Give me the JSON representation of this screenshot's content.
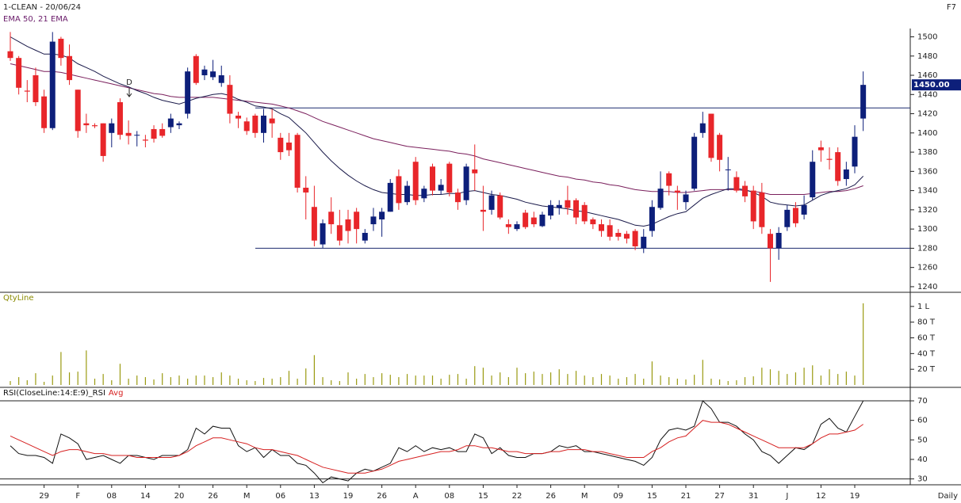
{
  "chart_data": [
    {
      "type": "candlestick",
      "title": "1-CLEAN - 20/06/24",
      "subtitle": "EMA 50, 21 EMA",
      "corner_label": "F7",
      "annotation": "D",
      "categories": [
        null,
        null,
        null,
        null,
        "29",
        null,
        null,
        null,
        "F",
        null,
        null,
        null,
        "08",
        null,
        null,
        null,
        "14",
        null,
        null,
        null,
        "20",
        null,
        null,
        null,
        "26",
        null,
        null,
        null,
        "M",
        null,
        null,
        null,
        "06",
        null,
        null,
        null,
        "13",
        null,
        null,
        null,
        "19",
        null,
        null,
        null,
        "26",
        null,
        null,
        null,
        "A",
        null,
        null,
        null,
        "08",
        null,
        null,
        null,
        "15",
        null,
        null,
        null,
        "22",
        null,
        null,
        null,
        "26",
        null,
        null,
        null,
        "M",
        null,
        null,
        null,
        "09",
        null,
        null,
        null,
        "15",
        null,
        null,
        null,
        "21",
        null,
        null,
        null,
        "27",
        null,
        null,
        null,
        "31",
        null,
        null,
        null,
        "J",
        null,
        null,
        null,
        "12",
        null,
        null,
        null,
        "19",
        null
      ],
      "open": [
        1485,
        1478,
        1444,
        1460,
        1438,
        1405,
        1498,
        1480,
        1445,
        1410,
        1408,
        1410,
        1400,
        1432,
        1400,
        1398,
        1393,
        1404,
        1404,
        1406,
        1408,
        1420,
        1480,
        1460,
        1458,
        1452,
        1450,
        1418,
        1412,
        1418,
        1400,
        1415,
        1395,
        1390,
        1398,
        1343,
        1323,
        1284,
        1318,
        1304,
        1310,
        1318,
        1288,
        1305,
        1310,
        1318,
        1355,
        1328,
        1370,
        1332,
        1365,
        1340,
        1368,
        1338,
        1330,
        1362,
        1320,
        1320,
        1335,
        1305,
        1300,
        1317,
        1312,
        1303,
        1314,
        1322,
        1330,
        1330,
        1325,
        1310,
        1305,
        1304,
        1296,
        1295,
        1298,
        1280,
        1298,
        1322,
        1358,
        1340,
        1328,
        1342,
        1400,
        1420,
        1398,
        1362,
        1354,
        1345,
        1340,
        1338,
        1295,
        1280,
        1302,
        1322,
        1315,
        1333,
        1385,
        1373,
        1380,
        1352,
        1365,
        1415
      ],
      "high": [
        1505,
        1480,
        1455,
        1468,
        1445,
        1505,
        1500,
        1492,
        1445,
        1420,
        1410,
        1410,
        1415,
        1436,
        1413,
        1402,
        1398,
        1408,
        1410,
        1420,
        1412,
        1468,
        1482,
        1470,
        1476,
        1470,
        1460,
        1422,
        1416,
        1420,
        1425,
        1425,
        1400,
        1400,
        1400,
        1355,
        1345,
        1310,
        1333,
        1320,
        1320,
        1322,
        1300,
        1322,
        1322,
        1352,
        1362,
        1350,
        1375,
        1345,
        1368,
        1352,
        1370,
        1342,
        1368,
        1388,
        1345,
        1340,
        1338,
        1310,
        1308,
        1320,
        1318,
        1318,
        1330,
        1330,
        1345,
        1332,
        1328,
        1312,
        1310,
        1310,
        1300,
        1298,
        1300,
        1300,
        1330,
        1360,
        1360,
        1345,
        1340,
        1400,
        1422,
        1420,
        1400,
        1375,
        1360,
        1350,
        1345,
        1348,
        1300,
        1302,
        1325,
        1328,
        1335,
        1382,
        1392,
        1385,
        1385,
        1370,
        1408,
        1464
      ],
      "low": [
        1475,
        1440,
        1432,
        1428,
        1400,
        1403,
        1470,
        1450,
        1395,
        1400,
        1405,
        1370,
        1385,
        1393,
        1388,
        1386,
        1385,
        1390,
        1395,
        1400,
        1404,
        1415,
        1450,
        1455,
        1455,
        1448,
        1410,
        1405,
        1398,
        1395,
        1390,
        1395,
        1372,
        1376,
        1338,
        1310,
        1282,
        1280,
        1295,
        1283,
        1285,
        1285,
        1285,
        1298,
        1292,
        1318,
        1320,
        1325,
        1325,
        1328,
        1335,
        1336,
        1334,
        1320,
        1325,
        1340,
        1298,
        1315,
        1310,
        1295,
        1298,
        1300,
        1302,
        1302,
        1310,
        1315,
        1315,
        1305,
        1305,
        1300,
        1292,
        1288,
        1288,
        1285,
        1278,
        1275,
        1292,
        1320,
        1335,
        1320,
        1320,
        1340,
        1395,
        1370,
        1360,
        1340,
        1338,
        1328,
        1300,
        1295,
        1245,
        1268,
        1298,
        1302,
        1310,
        1330,
        1370,
        1362,
        1345,
        1345,
        1358,
        1402
      ],
      "close": [
        1478,
        1447,
        1443,
        1432,
        1405,
        1495,
        1478,
        1455,
        1402,
        1408,
        1407,
        1376,
        1410,
        1398,
        1397,
        1398,
        1392,
        1394,
        1397,
        1415,
        1410,
        1464,
        1452,
        1466,
        1464,
        1460,
        1420,
        1415,
        1402,
        1400,
        1418,
        1410,
        1380,
        1382,
        1343,
        1338,
        1288,
        1306,
        1305,
        1288,
        1298,
        1300,
        1296,
        1313,
        1318,
        1348,
        1327,
        1345,
        1330,
        1342,
        1340,
        1346,
        1338,
        1328,
        1365,
        1358,
        1318,
        1335,
        1312,
        1302,
        1305,
        1302,
        1305,
        1315,
        1325,
        1325,
        1322,
        1312,
        1308,
        1305,
        1298,
        1292,
        1292,
        1290,
        1282,
        1292,
        1323,
        1342,
        1345,
        1338,
        1336,
        1396,
        1410,
        1374,
        1372,
        1362,
        1340,
        1334,
        1308,
        1302,
        1280,
        1296,
        1320,
        1306,
        1325,
        1370,
        1382,
        1372,
        1350,
        1362,
        1396,
        1450
      ],
      "up_color": "#0d1f7a",
      "down_color": "#e8262a",
      "series": [
        {
          "color": "#7a1f5c",
          "values": [
            1472,
            1470,
            1468,
            1466,
            1464,
            1464,
            1463,
            1461,
            1459,
            1457,
            1455,
            1453,
            1451,
            1449,
            1447,
            1445,
            1443,
            1441,
            1440,
            1438,
            1437,
            1437,
            1437,
            1437,
            1437,
            1436,
            1435,
            1434,
            1433,
            1432,
            1431,
            1430,
            1428,
            1426,
            1423,
            1420,
            1416,
            1412,
            1409,
            1406,
            1403,
            1400,
            1397,
            1394,
            1392,
            1390,
            1388,
            1386,
            1385,
            1384,
            1383,
            1382,
            1381,
            1379,
            1378,
            1376,
            1373,
            1371,
            1369,
            1367,
            1365,
            1363,
            1361,
            1359,
            1357,
            1355,
            1354,
            1352,
            1351,
            1349,
            1348,
            1346,
            1345,
            1343,
            1341,
            1340,
            1339,
            1339,
            1339,
            1338,
            1338,
            1339,
            1340,
            1341,
            1341,
            1341,
            1341,
            1340,
            1339,
            1338,
            1336,
            1336,
            1336,
            1336,
            1336,
            1337,
            1338,
            1339,
            1339,
            1340,
            1342,
            1345
          ]
        },
        {
          "color": "#1a1a4a",
          "values": [
            1500,
            1495,
            1490,
            1486,
            1482,
            1482,
            1481,
            1478,
            1472,
            1468,
            1464,
            1459,
            1455,
            1451,
            1448,
            1444,
            1441,
            1437,
            1434,
            1432,
            1430,
            1433,
            1436,
            1438,
            1440,
            1441,
            1439,
            1435,
            1432,
            1428,
            1427,
            1425,
            1420,
            1416,
            1408,
            1400,
            1390,
            1380,
            1371,
            1363,
            1356,
            1350,
            1345,
            1341,
            1338,
            1337,
            1336,
            1336,
            1335,
            1335,
            1336,
            1336,
            1337,
            1337,
            1339,
            1340,
            1338,
            1336,
            1335,
            1333,
            1331,
            1328,
            1326,
            1324,
            1323,
            1322,
            1321,
            1319,
            1318,
            1316,
            1314,
            1312,
            1310,
            1307,
            1304,
            1303,
            1305,
            1309,
            1313,
            1316,
            1318,
            1325,
            1332,
            1336,
            1339,
            1342,
            1342,
            1341,
            1338,
            1334,
            1328,
            1326,
            1325,
            1324,
            1325,
            1330,
            1335,
            1338,
            1340,
            1342,
            1346,
            1355
          ]
        }
      ],
      "levels": [
        1426,
        1280
      ],
      "level_color": "#1c2a6e",
      "last_price": {
        "value": 1450,
        "label": "1450.00"
      },
      "ylim": [
        1235,
        1507
      ],
      "yticks": [
        1240,
        1260,
        1280,
        1300,
        1320,
        1340,
        1360,
        1380,
        1400,
        1420,
        1440,
        1460,
        1480,
        1500
      ]
    },
    {
      "type": "bar",
      "title": "QtyLine",
      "color": "#9a9a10",
      "values": [
        5000,
        10000,
        6000,
        15000,
        4000,
        12000,
        42000,
        16000,
        17000,
        44000,
        8000,
        14000,
        6000,
        27000,
        8000,
        12000,
        10000,
        7000,
        15000,
        10000,
        12000,
        8000,
        12000,
        12000,
        10000,
        16000,
        12000,
        8000,
        6000,
        5000,
        9000,
        8000,
        10000,
        18000,
        8000,
        21000,
        38000,
        10000,
        6000,
        5000,
        16000,
        8000,
        14000,
        10000,
        15000,
        13000,
        10000,
        14000,
        12000,
        12000,
        12000,
        8000,
        13000,
        14000,
        8000,
        24000,
        22000,
        12000,
        16000,
        10000,
        22000,
        15000,
        17000,
        14000,
        16000,
        20000,
        14000,
        18000,
        12000,
        10000,
        14000,
        12000,
        8000,
        10000,
        14000,
        8000,
        30000,
        12000,
        10000,
        8000,
        7000,
        13000,
        32000,
        8000,
        7000,
        5000,
        6000,
        10000,
        11000,
        22000,
        20000,
        18000,
        14000,
        16000,
        22000,
        25000,
        12000,
        20000,
        14000,
        17000,
        12000,
        104000
      ],
      "ylim": [
        0,
        117000
      ],
      "yticks": [
        {
          "value": 20000,
          "label": "20 T"
        },
        {
          "value": 40000,
          "label": "40 T"
        },
        {
          "value": 60000,
          "label": "60 T"
        },
        {
          "value": 80000,
          "label": "80 T"
        },
        {
          "value": 100000,
          "label": "1 L"
        }
      ]
    },
    {
      "type": "line",
      "x_label": "Daily",
      "series": [
        {
          "name": "RSI(CloseLine:14:E:9)_RSI",
          "color": "#111111",
          "values": [
            47,
            43,
            42,
            42,
            41,
            38,
            53,
            51,
            48,
            40,
            41,
            42,
            40,
            38,
            42,
            42,
            41,
            40,
            42,
            42,
            42,
            45,
            56,
            53,
            57,
            56,
            56,
            47,
            44,
            46,
            41,
            45,
            42,
            42,
            38,
            37,
            33,
            28,
            31,
            30,
            29,
            33,
            35,
            34,
            36,
            38,
            46,
            44,
            47,
            44,
            46,
            45,
            46,
            44,
            44,
            53,
            51,
            43,
            46,
            42,
            41,
            41,
            43,
            43,
            44,
            47,
            46,
            47,
            44,
            44,
            43,
            42,
            41,
            40,
            39,
            37,
            41,
            50,
            55,
            56,
            55,
            57,
            70,
            66,
            59,
            59,
            57,
            53,
            50,
            44,
            42,
            38,
            42,
            46,
            45,
            48,
            58,
            61,
            56,
            54,
            62,
            70
          ]
        },
        {
          "name": "Avg",
          "color": "#d62020",
          "values": [
            52,
            50,
            48,
            46,
            44,
            42,
            44,
            45,
            45,
            44,
            43,
            43,
            42,
            42,
            42,
            41,
            41,
            41,
            41,
            41,
            42,
            44,
            47,
            49,
            51,
            51,
            50,
            49,
            48,
            46,
            45,
            45,
            44,
            43,
            42,
            40,
            38,
            36,
            35,
            34,
            33,
            33,
            33,
            34,
            35,
            37,
            39,
            40,
            41,
            42,
            43,
            44,
            44,
            45,
            47,
            47,
            46,
            46,
            45,
            44,
            44,
            43,
            43,
            43,
            44,
            44,
            45,
            45,
            45,
            44,
            44,
            43,
            42,
            41,
            41,
            41,
            44,
            46,
            49,
            51,
            52,
            56,
            60,
            59,
            59,
            58,
            56,
            54,
            52,
            50,
            48,
            46,
            46,
            46,
            46,
            48,
            51,
            53,
            53,
            54,
            55,
            58
          ]
        }
      ],
      "levels": [
        70,
        30
      ],
      "ylim": [
        27,
        76.5
      ],
      "yticks": [
        30,
        40,
        50,
        60,
        70
      ]
    }
  ]
}
